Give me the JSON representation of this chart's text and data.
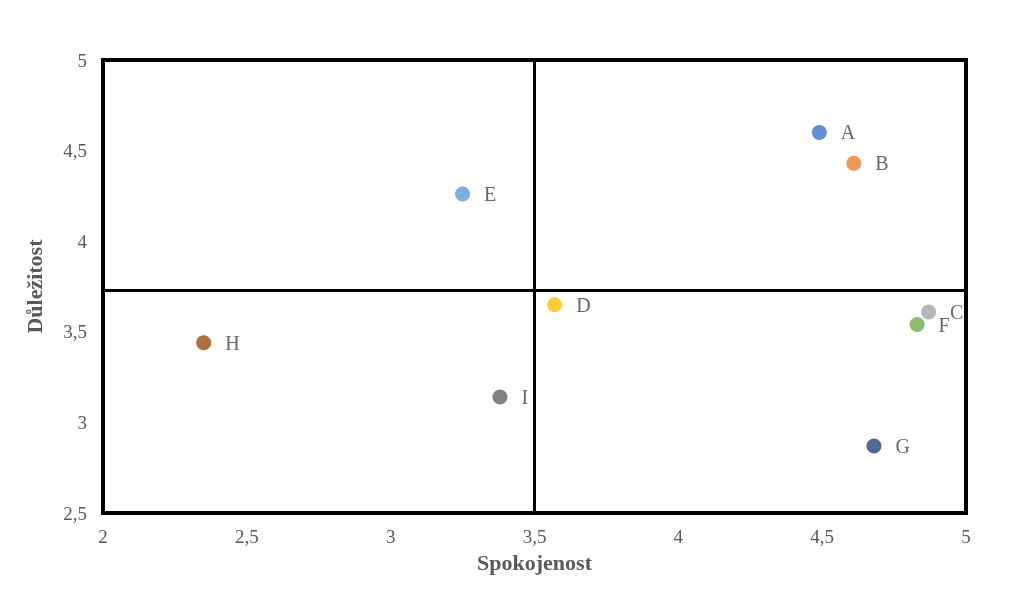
{
  "chart_data": {
    "type": "scatter",
    "xlabel": "Spokojenost",
    "ylabel": "Důležitost",
    "xlim": [
      2,
      5
    ],
    "ylim": [
      2.5,
      5
    ],
    "xticks": [
      2,
      {
        "value": 2.5,
        "label": "2,5"
      },
      3,
      {
        "value": 3.5,
        "label": "3,5"
      },
      4,
      {
        "value": 4.5,
        "label": "4,5"
      },
      5
    ],
    "yticks": [
      {
        "value": 2.5,
        "label": "2,5"
      },
      3,
      {
        "value": 3.5,
        "label": "3,5"
      },
      4,
      {
        "value": 4.5,
        "label": "4,5"
      },
      5
    ],
    "grid": false,
    "legend": false,
    "marker": "circle",
    "ref_lines": [
      {
        "axis": "x",
        "value": 3.5,
        "color": "#000000"
      },
      {
        "axis": "y",
        "value": 3.73,
        "color": "#000000"
      }
    ],
    "series": [
      {
        "name": "A",
        "color": "#4472c4",
        "x": [
          4.49
        ],
        "values": [
          4.6
        ]
      },
      {
        "name": "B",
        "color": "#ed7d31",
        "x": [
          4.61
        ],
        "values": [
          4.43
        ]
      },
      {
        "name": "C",
        "color": "#a5a5a5",
        "x": [
          4.87
        ],
        "values": [
          3.61
        ]
      },
      {
        "name": "D",
        "color": "#ffc000",
        "x": [
          3.57
        ],
        "values": [
          3.65
        ]
      },
      {
        "name": "E",
        "color": "#5b9bd5",
        "x": [
          3.25
        ],
        "values": [
          4.26
        ]
      },
      {
        "name": "F",
        "color": "#70ad47",
        "x": [
          4.83
        ],
        "values": [
          3.54
        ]
      },
      {
        "name": "G",
        "color": "#264478",
        "x": [
          4.68
        ],
        "values": [
          2.87
        ]
      },
      {
        "name": "H",
        "color": "#9e480e",
        "x": [
          2.35
        ],
        "values": [
          3.44
        ]
      },
      {
        "name": "I",
        "color": "#636363",
        "x": [
          3.38
        ],
        "values": [
          3.14
        ]
      }
    ]
  }
}
